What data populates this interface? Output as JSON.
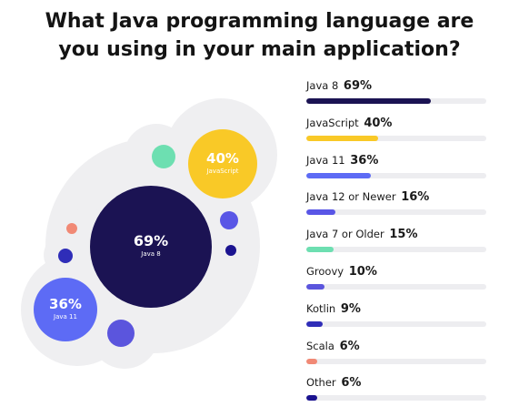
{
  "title": {
    "line1": "What Java programming language are",
    "line2": "you using in your main application?"
  },
  "colors": {
    "java8": "#1b1353",
    "javascript": "#f9c927",
    "java11": "#5d6bf5",
    "java12": "#5956e6",
    "java7": "#6ddfb1",
    "groovy": "#5b55dd",
    "kotlin": "#2f2db8",
    "scala": "#f18975",
    "other": "#1b1390",
    "track": "#ededf0",
    "backdrop": "#efeff1"
  },
  "chart_data": {
    "type": "bar",
    "orientation": "horizontal",
    "categories": [
      "Java 8",
      "JavaScript",
      "Java 11",
      "Java 12 or Newer",
      "Java 7 or Older",
      "Groovy",
      "Kotlin",
      "Scala",
      "Other"
    ],
    "values": [
      69,
      40,
      36,
      16,
      15,
      10,
      9,
      6,
      6
    ],
    "value_labels": [
      "69%",
      "40%",
      "36%",
      "16%",
      "15%",
      "10%",
      "9%",
      "6%",
      "6%"
    ],
    "unit": "%",
    "xlim": [
      0,
      100
    ],
    "grid": false,
    "legend": "none"
  },
  "bubble_chart": {
    "labeled": [
      {
        "series": "Java 8",
        "value_label": "69%",
        "name_label": "Java 8",
        "color": "#1b1353"
      },
      {
        "series": "JavaScript",
        "value_label": "40%",
        "name_label": "JavaScript",
        "color": "#f9c927"
      },
      {
        "series": "Java 11",
        "value_label": "36%",
        "name_label": "Java 11",
        "color": "#5d6bf5"
      }
    ],
    "unlabeled": [
      {
        "series": "Java 12 or Newer",
        "color": "#5956e6"
      },
      {
        "series": "Java 7 or Older",
        "color": "#6ddfb1"
      },
      {
        "series": "Groovy",
        "color": "#5b55dd"
      },
      {
        "series": "Kotlin",
        "color": "#2f2db8"
      },
      {
        "series": "Scala",
        "color": "#f18975"
      },
      {
        "series": "Other",
        "color": "#1b1390"
      }
    ]
  }
}
